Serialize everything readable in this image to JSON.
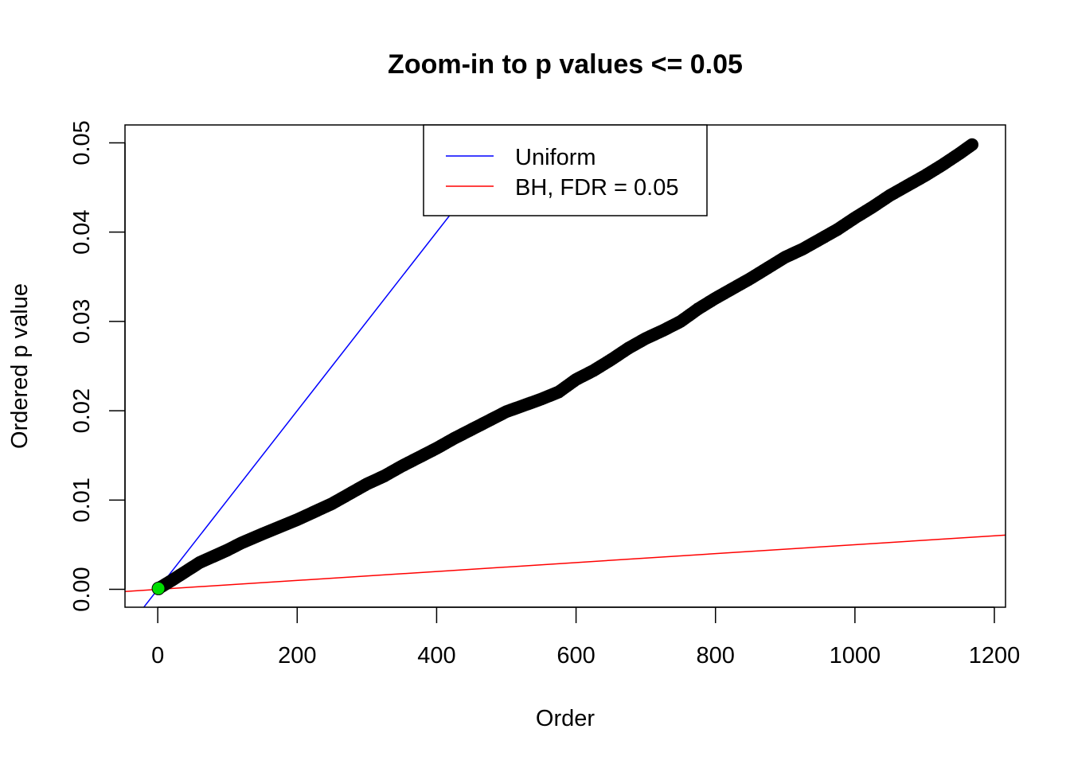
{
  "chart_data": {
    "type": "scatter",
    "title": "Zoom-in to p values <= 0.05",
    "xlabel": "Order",
    "ylabel": "Ordered p value",
    "xlim": [
      -47,
      1216
    ],
    "ylim": [
      -0.002,
      0.052
    ],
    "xticks": [
      0,
      200,
      400,
      600,
      800,
      1000,
      1200
    ],
    "yticks": [
      0.0,
      0.01,
      0.02,
      0.03,
      0.04,
      0.05
    ],
    "xtick_labels": [
      "0",
      "200",
      "400",
      "600",
      "800",
      "1000",
      "1200"
    ],
    "ytick_labels": [
      "0.00",
      "0.01",
      "0.02",
      "0.03",
      "0.04",
      "0.05"
    ],
    "grid": false,
    "legend": {
      "position": "top-center",
      "entries": [
        {
          "label": "Uniform",
          "color": "#0000ff"
        },
        {
          "label": "BH, FDR = 0.05",
          "color": "#ff0000"
        }
      ]
    },
    "lines": [
      {
        "name": "Uniform",
        "color": "#0000ff",
        "slope": 0.0001,
        "intercept": 0
      },
      {
        "name": "BH, FDR = 0.05",
        "color": "#ff0000",
        "slope": 5e-06,
        "intercept": 0
      }
    ],
    "points": {
      "color": "#000000",
      "x": [
        1,
        20,
        40,
        60,
        80,
        100,
        120,
        150,
        175,
        200,
        225,
        250,
        275,
        300,
        325,
        350,
        375,
        400,
        425,
        450,
        475,
        500,
        525,
        550,
        575,
        600,
        625,
        650,
        675,
        700,
        725,
        750,
        775,
        800,
        825,
        850,
        875,
        900,
        925,
        950,
        975,
        1000,
        1025,
        1050,
        1075,
        1100,
        1125,
        1150,
        1168
      ],
      "y": [
        0.0001,
        0.001,
        0.002,
        0.003,
        0.0037,
        0.0044,
        0.0052,
        0.0062,
        0.007,
        0.0078,
        0.0087,
        0.0096,
        0.0107,
        0.0118,
        0.0127,
        0.0138,
        0.0148,
        0.0158,
        0.0169,
        0.0179,
        0.0189,
        0.0199,
        0.0206,
        0.0213,
        0.0221,
        0.0235,
        0.0245,
        0.0257,
        0.027,
        0.0281,
        0.029,
        0.03,
        0.0314,
        0.0326,
        0.0337,
        0.0348,
        0.036,
        0.0372,
        0.0381,
        0.0392,
        0.0403,
        0.0416,
        0.0428,
        0.0441,
        0.0452,
        0.0463,
        0.0475,
        0.0488,
        0.0498
      ]
    },
    "highlight_point": {
      "x": 1,
      "y": 0.0001,
      "color": "#00dd00"
    }
  }
}
